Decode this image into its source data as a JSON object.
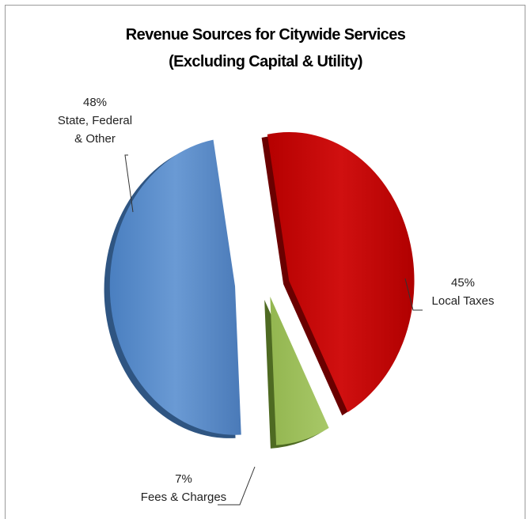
{
  "chart_data": {
    "type": "pie",
    "title": "Revenue Sources for Citywide Services",
    "subtitle": "(Excluding Capital & Utility)",
    "slices": [
      {
        "label_lines": [
          "45%",
          "Local Taxes"
        ],
        "percent_text": "45%",
        "name": "Local Taxes",
        "value": 45,
        "color": "#c00000"
      },
      {
        "label_lines": [
          "7%",
          "Fees & Charges"
        ],
        "percent_text": "7%",
        "name": "Fees & Charges",
        "value": 7,
        "color": "#9bbb59"
      },
      {
        "label_lines": [
          "48%",
          "State, Federal",
          "& Other"
        ],
        "percent_text": "48%",
        "name": "State, Federal & Other",
        "value": 48,
        "color": "#4f81bd"
      }
    ],
    "exploded": true,
    "style": "3d"
  }
}
